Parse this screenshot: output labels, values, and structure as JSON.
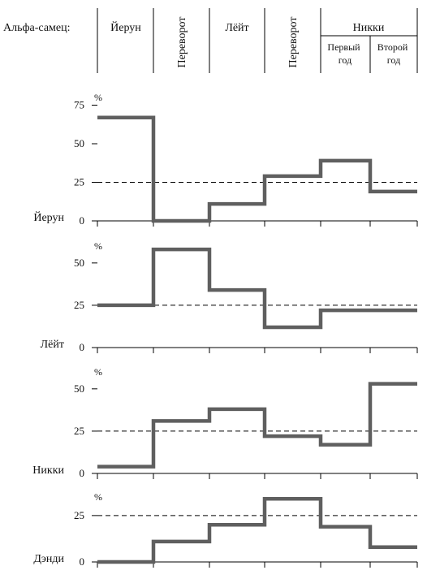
{
  "header": {
    "row_label": "Альфа-самец:",
    "periods": [
      "Йерун",
      "Переворот",
      "Лёйт",
      "Переворот",
      "Никки"
    ],
    "subperiods": [
      "Первый год",
      "Второй год"
    ]
  },
  "colors": {
    "line": "#5f5f5f",
    "axis": "#000000",
    "reference": "#000000"
  },
  "chart_data": [
    {
      "type": "line",
      "step": true,
      "name": "Йерун",
      "unit": "%",
      "categories": [
        "Йерун",
        "Переворот",
        "Лёйт",
        "Переворот",
        "Никки: Первый год",
        "Никки: Второй год"
      ],
      "values": [
        67,
        0,
        11,
        29,
        39,
        19
      ],
      "yticks": [
        0,
        25,
        50,
        75
      ],
      "ylim": [
        0,
        80
      ],
      "reference_line": 25,
      "grid": false
    },
    {
      "type": "line",
      "step": true,
      "name": "Лёйт",
      "unit": "%",
      "categories": [
        "Йерун",
        "Переворот",
        "Лёйт",
        "Переворот",
        "Никки: Первый год",
        "Никки: Второй год"
      ],
      "values": [
        25,
        58,
        34,
        12,
        22,
        22
      ],
      "yticks": [
        0,
        25,
        50
      ],
      "ylim": [
        0,
        60
      ],
      "reference_line": 25,
      "grid": false
    },
    {
      "type": "line",
      "step": true,
      "name": "Никки",
      "unit": "%",
      "categories": [
        "Йерун",
        "Переворот",
        "Лёйт",
        "Переворот",
        "Никки: Первый год",
        "Никки: Второй год"
      ],
      "values": [
        4,
        31,
        38,
        22,
        17,
        53
      ],
      "yticks": [
        0,
        25,
        50
      ],
      "ylim": [
        0,
        60
      ],
      "reference_line": 25,
      "grid": false
    },
    {
      "type": "line",
      "step": true,
      "name": "Дэнди",
      "unit": "%",
      "categories": [
        "Йерун",
        "Переворот",
        "Лёйт",
        "Переворот",
        "Никки: Первый год",
        "Никки: Второй год"
      ],
      "values": [
        0,
        11,
        20,
        34,
        19,
        8
      ],
      "yticks": [
        0,
        25
      ],
      "ylim": [
        0,
        35
      ],
      "reference_line": 25,
      "grid": false
    }
  ]
}
